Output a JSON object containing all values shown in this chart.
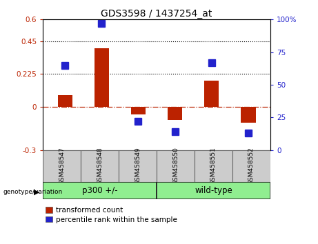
{
  "title": "GDS3598 / 1437254_at",
  "categories": [
    "GSM458547",
    "GSM458548",
    "GSM458549",
    "GSM458550",
    "GSM458551",
    "GSM458552"
  ],
  "red_values": [
    0.08,
    0.4,
    -0.055,
    -0.09,
    0.18,
    -0.11
  ],
  "blue_values_pct": [
    65,
    97,
    22,
    14,
    67,
    13
  ],
  "blue_scale_max": 100,
  "left_ylim": [
    -0.3,
    0.6
  ],
  "left_yticks": [
    -0.3,
    0,
    0.225,
    0.45,
    0.6
  ],
  "left_ytick_labels": [
    "-0.3",
    "0",
    "0.225",
    "0.45",
    "0.6"
  ],
  "right_yticks": [
    0,
    25,
    50,
    75,
    100
  ],
  "right_ytick_labels": [
    "0",
    "25",
    "50",
    "75",
    "100%"
  ],
  "hlines": [
    0.225,
    0.45
  ],
  "hline_zero": 0,
  "group1_label": "p300 +/-",
  "group2_label": "wild-type",
  "genotype_label": "genotype/variation",
  "legend_red": "transformed count",
  "legend_blue": "percentile rank within the sample",
  "bar_color_red": "#bb2200",
  "bar_color_blue": "#2222cc",
  "group_color": "#90ee90",
  "bg_color": "#cccccc",
  "plot_bg": "#ffffff",
  "bar_width": 0.4,
  "marker_size": 7
}
